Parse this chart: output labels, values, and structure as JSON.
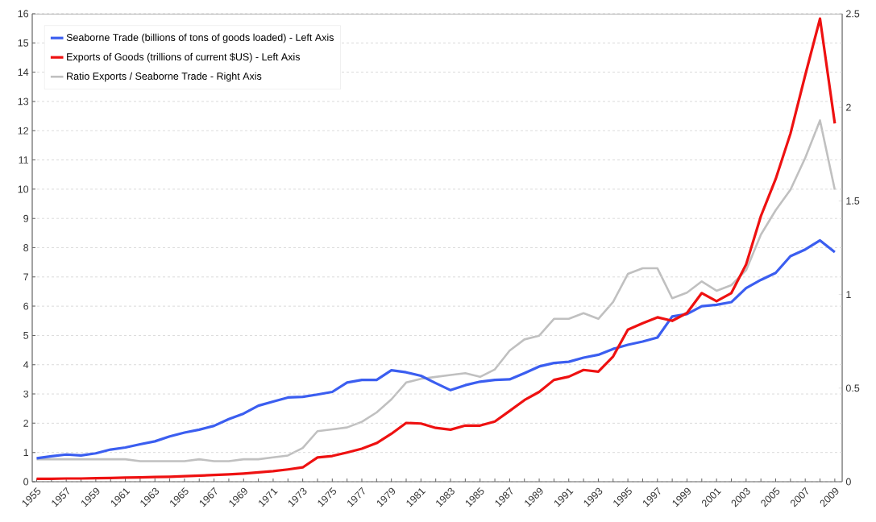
{
  "chart_data": {
    "type": "line",
    "x": [
      1955,
      1956,
      1957,
      1958,
      1959,
      1960,
      1961,
      1962,
      1963,
      1964,
      1965,
      1966,
      1967,
      1968,
      1969,
      1970,
      1971,
      1972,
      1973,
      1974,
      1975,
      1976,
      1977,
      1978,
      1979,
      1980,
      1981,
      1982,
      1983,
      1984,
      1985,
      1986,
      1987,
      1988,
      1989,
      1990,
      1991,
      1992,
      1993,
      1994,
      1995,
      1996,
      1997,
      1998,
      1999,
      2000,
      2001,
      2002,
      2003,
      2004,
      2005,
      2006,
      2007,
      2008,
      2009
    ],
    "series": [
      {
        "name": "Seaborne Trade (billions of tons of goods loaded) - Left Axis",
        "color": "#3b5ef0",
        "values": [
          0.8,
          0.87,
          0.93,
          0.9,
          0.97,
          1.1,
          1.17,
          1.28,
          1.38,
          1.55,
          1.68,
          1.78,
          1.91,
          2.14,
          2.33,
          2.6,
          2.74,
          2.88,
          2.9,
          2.98,
          3.07,
          3.39,
          3.48,
          3.48,
          3.81,
          3.74,
          3.62,
          3.37,
          3.13,
          3.3,
          3.42,
          3.48,
          3.5,
          3.71,
          3.94,
          4.06,
          4.1,
          4.24,
          4.34,
          4.54,
          4.68,
          4.79,
          4.93,
          5.65,
          5.73,
          6.0,
          6.05,
          6.14,
          6.62,
          6.9,
          7.14,
          7.71,
          7.94,
          8.25,
          7.85
        ]
      },
      {
        "name": "Exports of Goods (trillions of current $US) - Left Axis",
        "color": "#ee1111",
        "values": [
          0.1,
          0.1,
          0.11,
          0.11,
          0.12,
          0.13,
          0.14,
          0.15,
          0.16,
          0.17,
          0.19,
          0.21,
          0.23,
          0.25,
          0.28,
          0.32,
          0.36,
          0.42,
          0.49,
          0.83,
          0.88,
          1.0,
          1.13,
          1.32,
          1.64,
          2.01,
          1.99,
          1.84,
          1.78,
          1.92,
          1.92,
          2.06,
          2.42,
          2.79,
          3.07,
          3.48,
          3.59,
          3.82,
          3.76,
          4.28,
          5.2,
          5.42,
          5.62,
          5.5,
          5.77,
          6.45,
          6.17,
          6.45,
          7.43,
          9.08,
          10.35,
          11.9,
          13.9,
          15.83,
          12.25
        ]
      },
      {
        "name": "Ratio Exports / Seaborne Trade - Right Axis",
        "color": "#c0c0c0",
        "axis": "y2",
        "values": [
          0.12,
          0.12,
          0.12,
          0.12,
          0.12,
          0.12,
          0.12,
          0.11,
          0.11,
          0.11,
          0.11,
          0.12,
          0.11,
          0.11,
          0.12,
          0.12,
          0.13,
          0.14,
          0.18,
          0.27,
          0.28,
          0.29,
          0.32,
          0.37,
          0.44,
          0.53,
          0.55,
          0.56,
          0.57,
          0.58,
          0.56,
          0.6,
          0.7,
          0.76,
          0.78,
          0.87,
          0.87,
          0.9,
          0.87,
          0.96,
          1.11,
          1.14,
          1.14,
          0.98,
          1.01,
          1.07,
          1.02,
          1.05,
          1.13,
          1.32,
          1.45,
          1.56,
          1.73,
          1.93,
          1.56
        ]
      }
    ],
    "xlim": [
      1954.7,
      2009.5
    ],
    "xticks": [
      1955,
      {
        "value": 1956,
        "label": null
      },
      1957,
      {
        "value": 1958,
        "label": null
      },
      1959,
      {
        "value": 1960,
        "label": null
      },
      1961,
      {
        "value": 1962,
        "label": null
      },
      1963,
      {
        "value": 1964,
        "label": null
      },
      1965,
      {
        "value": 1966,
        "label": null
      },
      1967,
      {
        "value": 1968,
        "label": null
      },
      1969,
      {
        "value": 1970,
        "label": null
      },
      1971,
      {
        "value": 1972,
        "label": null
      },
      1973,
      {
        "value": 1974,
        "label": null
      },
      1975,
      {
        "value": 1976,
        "label": null
      },
      1977,
      {
        "value": 1978,
        "label": null
      },
      1979,
      {
        "value": 1980,
        "label": null
      },
      1981,
      {
        "value": 1982,
        "label": null
      },
      1983,
      {
        "value": 1984,
        "label": null
      },
      1985,
      {
        "value": 1986,
        "label": null
      },
      1987,
      {
        "value": 1988,
        "label": null
      },
      1989,
      {
        "value": 1990,
        "label": null
      },
      1991,
      {
        "value": 1992,
        "label": null
      },
      1993,
      {
        "value": 1994,
        "label": null
      },
      1995,
      {
        "value": 1996,
        "label": null
      },
      1997,
      {
        "value": 1998,
        "label": null
      },
      1999,
      {
        "value": 2000,
        "label": null
      },
      2001,
      {
        "value": 2002,
        "label": null
      },
      2003,
      {
        "value": 2004,
        "label": null
      },
      2005,
      {
        "value": 2006,
        "label": null
      },
      2007,
      {
        "value": 2008,
        "label": null
      },
      2009
    ],
    "ylim": [
      0,
      16
    ],
    "yticks": [
      0,
      1,
      2,
      3,
      4,
      5,
      6,
      7,
      8,
      9,
      10,
      11,
      12,
      13,
      14,
      15,
      16
    ],
    "y2lim": [
      0,
      2.5
    ],
    "y2ticks": [
      0,
      0.5,
      1,
      1.5,
      2,
      2.5
    ],
    "grid": "y",
    "legend": "top left",
    "line_style": "solid"
  }
}
